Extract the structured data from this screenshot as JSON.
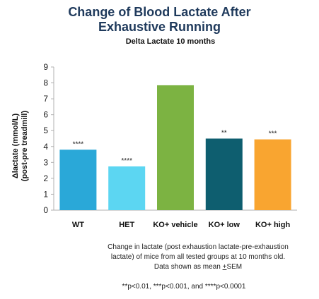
{
  "title": "Change of Blood Lactate After Exhaustive Running",
  "subtitle": "Delta Lactate 10 months",
  "chart_data": {
    "type": "bar",
    "title": "Change of Blood Lactate After Exhaustive Running",
    "subtitle": "Delta Lactate 10 months",
    "categories": [
      "WT",
      "HET",
      "KO+ vehicle",
      "KO+ low",
      "KO+ high"
    ],
    "values": [
      3.8,
      2.75,
      7.85,
      4.5,
      4.45
    ],
    "significance": [
      "****",
      "****",
      "",
      "**",
      "***"
    ],
    "colors": [
      "#2aa8d8",
      "#5cd6f2",
      "#7cb342",
      "#0e5e6f",
      "#f9a530"
    ],
    "ylabel_line1": "Δlactate (mmol/L)",
    "ylabel_line2": "(post-pre treadmill)",
    "ylim": [
      0,
      9
    ],
    "yticks": [
      "0",
      "1",
      "2",
      "3",
      "4",
      "5",
      "6",
      "7",
      "8",
      "9"
    ],
    "grid": false,
    "legend": "none"
  },
  "caption_line1": "Change in lactate (post exhaustion lactate-pre-exhaustion",
  "caption_line2": "lactate) of mice from all tested groups at 10 months old.",
  "caption_line3": "Data shown as mean ",
  "caption_pm": "+",
  "caption_sem": "SEM",
  "footnote": "**p<0.01, ***p<0.001, and ****p<0.0001"
}
